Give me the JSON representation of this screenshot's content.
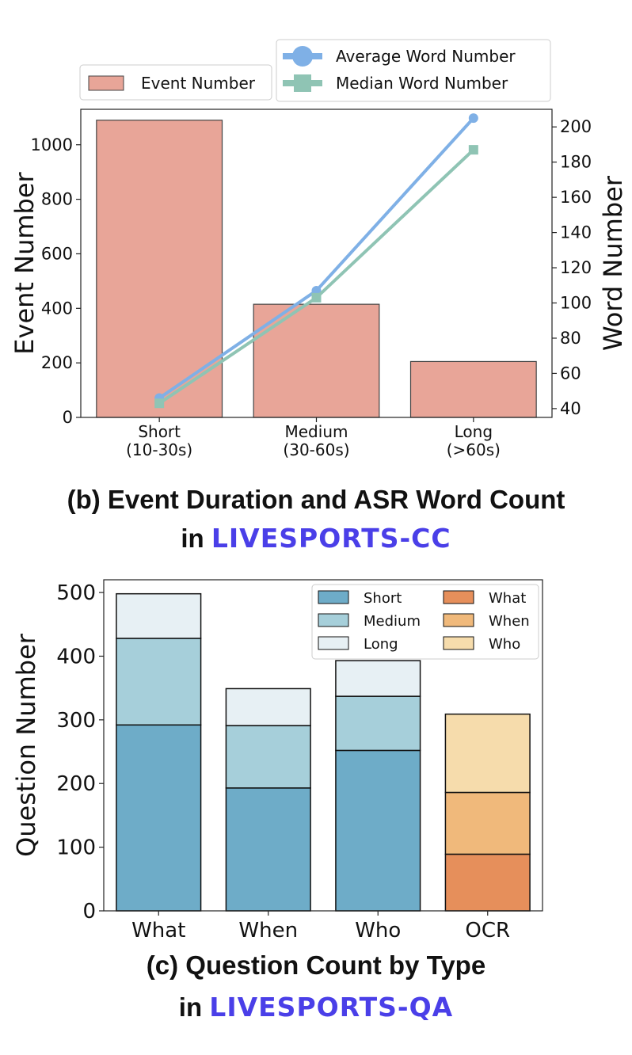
{
  "captions": {
    "b_line1": "(b) Event Duration and ASR Word Count",
    "b_prefix": "in",
    "b_brand": "LIVESPORTS-CC",
    "c_line1": "(c) Question Count by Type",
    "c_prefix": "in",
    "c_brand": "LIVESPORTS-QA"
  },
  "colors": {
    "event_bar": "#e8a598",
    "average_line": "#7fb0e6",
    "median_line": "#8fc4b4",
    "short": "#6eacc8",
    "medium": "#a6cfda",
    "long": "#e7f0f4",
    "ocr_what": "#e68f5b",
    "ocr_when": "#f0b97b",
    "ocr_who": "#f6dcac"
  },
  "chart_data": [
    {
      "type": "bar",
      "secondary_type": "line",
      "categories": [
        "Short\n(10-30s)",
        "Medium\n(30-60s)",
        "Long\n(>60s)"
      ],
      "category_lines": [
        [
          "Short",
          "(10-30s)"
        ],
        [
          "Medium",
          "(30-60s)"
        ],
        [
          "Long",
          "(>60s)"
        ]
      ],
      "series": [
        {
          "name": "Event Number",
          "axis": "left",
          "kind": "bar",
          "values": [
            1090,
            415,
            205
          ]
        },
        {
          "name": "Average Word Number",
          "axis": "right",
          "kind": "line",
          "marker": "circle",
          "values": [
            46,
            107,
            205
          ]
        },
        {
          "name": "Median Word Number",
          "axis": "right",
          "kind": "line",
          "marker": "square",
          "values": [
            43,
            103,
            187
          ]
        }
      ],
      "ylabel": "Event Number",
      "y2label": "Word Number",
      "ylim": [
        0,
        1130
      ],
      "y2lim": [
        35,
        210
      ],
      "yticks": [
        0,
        200,
        400,
        600,
        800,
        1000
      ],
      "y2ticks": [
        40,
        60,
        80,
        100,
        120,
        140,
        160,
        180,
        200
      ],
      "legend": [
        "top-left",
        "top-right"
      ]
    },
    {
      "type": "bar",
      "stacked": true,
      "categories": [
        "What",
        "When",
        "Who",
        "OCR"
      ],
      "series": [
        {
          "name": "Short",
          "values": [
            292,
            193,
            252,
            0
          ]
        },
        {
          "name": "Medium",
          "values": [
            136,
            98,
            85,
            0
          ]
        },
        {
          "name": "Long",
          "values": [
            70,
            58,
            56,
            0
          ]
        },
        {
          "name": "What",
          "values": [
            0,
            0,
            0,
            89
          ]
        },
        {
          "name": "When",
          "values": [
            0,
            0,
            0,
            97
          ]
        },
        {
          "name": "Who",
          "values": [
            0,
            0,
            0,
            123
          ]
        }
      ],
      "ylabel": "Question Number",
      "ylim": [
        0,
        520
      ],
      "yticks": [
        0,
        100,
        200,
        300,
        400,
        500
      ],
      "legend": "top-right"
    }
  ]
}
